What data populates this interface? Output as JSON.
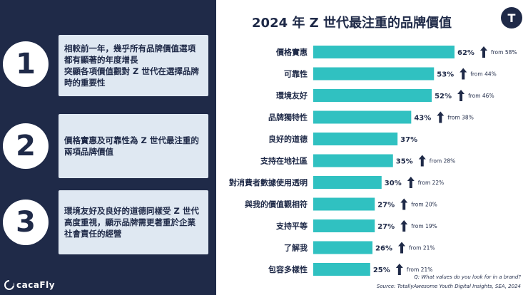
{
  "points": [
    {
      "number": "1",
      "text": "相較前一年，幾乎所有品牌價值選項都有顯著的年度增長\n突顯各項價值觀對 Z 世代在選擇品牌時的重要性"
    },
    {
      "number": "2",
      "text": "價格實惠及可靠性為 Z 世代最注重的兩項品牌價值"
    },
    {
      "number": "3",
      "text": "環境友好及良好的道德同樣受 Z 世代高度重視，顯示品牌需更著重於企業社會責任的經營"
    }
  ],
  "brand": {
    "name": "cacaFly",
    "icon": "cacafly-logo"
  },
  "logo": {
    "letter": "T",
    "icon": "totallyawesome-logo"
  },
  "chart_data": {
    "type": "bar",
    "orientation": "horizontal",
    "title": "2024 年 Z 世代最注重的品牌價值",
    "categories": [
      "價格實惠",
      "可靠性",
      "環境友好",
      "品牌獨特性",
      "良好的道德",
      "支持在地社區",
      "對消費者數據使用透明",
      "與我的價值觀相符",
      "支持平等",
      "了解我",
      "包容多樣性"
    ],
    "values": [
      62,
      53,
      52,
      43,
      37,
      35,
      30,
      27,
      27,
      26,
      25
    ],
    "value_labels": [
      "62%",
      "53%",
      "52%",
      "43%",
      "37%",
      "35%",
      "30%",
      "27%",
      "27%",
      "26%",
      "25%"
    ],
    "previous_labels": [
      "from 58%",
      "from 44%",
      "from 46%",
      "from 38%",
      "",
      "from 28%",
      "from 22%",
      "from 20%",
      "from 19%",
      "from 21%",
      "from 21%"
    ],
    "up_arrow": [
      true,
      true,
      true,
      true,
      false,
      true,
      true,
      true,
      true,
      true,
      true
    ],
    "bar_color": "#30c1c1",
    "xlim": [
      0,
      62
    ],
    "grid": false,
    "question": "Q: What values do you look for in a brand?",
    "source": "Source: TotallyAwesome Youth Digital Insights, SEA, 2024"
  }
}
